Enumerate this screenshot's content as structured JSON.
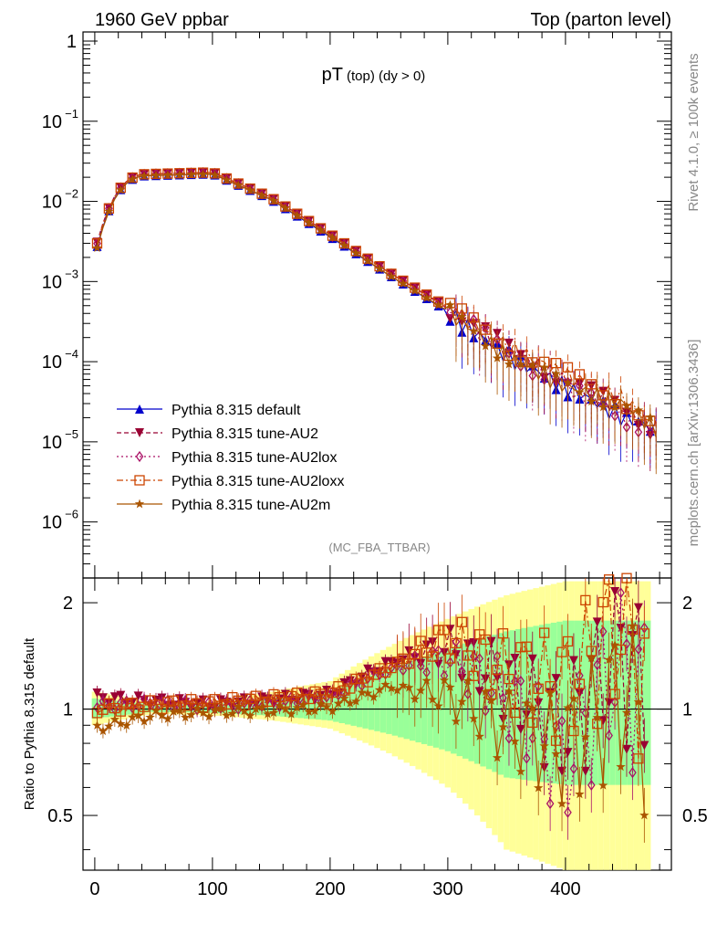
{
  "header": {
    "left": "1960 GeV ppbar",
    "right": "Top (parton level)"
  },
  "side_labels": {
    "top": "Rivet 4.1.0, ≥ 100k events",
    "bottom": "mcplots.cern.ch [arXiv:1306.3436]"
  },
  "chart_data": [
    {
      "type": "line",
      "panel": "main",
      "title": "pT",
      "title_sub": "(top)  (dy > 0)",
      "analysis": "(MC_FBA_TTBAR)",
      "yscale": "log",
      "ylim": [
        2e-07,
        1.3
      ],
      "xlim": [
        -10,
        490
      ],
      "yticks": [
        {
          "value": 1,
          "label": "1"
        },
        {
          "value": 0.1,
          "label": "10",
          "sup": "−1"
        },
        {
          "value": 0.01,
          "label": "10",
          "sup": "−2"
        },
        {
          "value": 0.001,
          "label": "10",
          "sup": "−3"
        },
        {
          "value": 0.0001,
          "label": "10",
          "sup": "−4"
        },
        {
          "value": 1e-05,
          "label": "10",
          "sup": "−5"
        },
        {
          "value": 1e-06,
          "label": "10",
          "sup": "−6"
        }
      ],
      "x": [
        0,
        50,
        100,
        150,
        200,
        250,
        300,
        350,
        400,
        450,
        475
      ],
      "series": [
        {
          "name": "Pythia 8.315 default",
          "color": "#0000cc",
          "marker": "triangle-up",
          "values": [
            0.0021,
            0.021,
            0.022,
            0.0105,
            0.0036,
            0.0012,
            0.00042,
            0.00012,
            5e-05,
            2e-05,
            1.5e-05
          ]
        },
        {
          "name": "Pythia 8.315 tune-AU2",
          "color": "#990033",
          "marker": "triangle-down",
          "values": [
            0.0024,
            0.022,
            0.023,
            0.0112,
            0.0039,
            0.0013,
            0.00047,
            0.00015,
            6e-05,
            2.5e-05,
            1.5e-05
          ]
        },
        {
          "name": "Pythia 8.315 tune-AU2lox",
          "color": "#aa1166",
          "marker": "diamond",
          "values": [
            0.0023,
            0.022,
            0.023,
            0.011,
            0.0038,
            0.0013,
            0.00046,
            0.00014,
            5e-05,
            2e-05,
            1.5e-05
          ]
        },
        {
          "name": "Pythia 8.315 tune-AU2loxx",
          "color": "#cc4400",
          "marker": "square",
          "values": [
            0.0023,
            0.022,
            0.023,
            0.0111,
            0.0039,
            0.0013,
            0.00048,
            0.00016,
            7e-05,
            3.5e-05,
            1.5e-05
          ]
        },
        {
          "name": "Pythia 8.315 tune-AU2m",
          "color": "#aa5500",
          "marker": "star",
          "values": [
            0.002,
            0.021,
            0.022,
            0.0106,
            0.0037,
            0.0012,
            0.00043,
            0.00012,
            5e-05,
            3e-05,
            1.5e-05
          ]
        }
      ]
    },
    {
      "type": "line",
      "panel": "ratio",
      "ylabel": "Ratio to Pythia 8.315 default",
      "ylim": [
        0.35,
        2.35
      ],
      "xlim": [
        -10,
        490
      ],
      "yticks": [
        0.5,
        1,
        2
      ],
      "xticks": [
        0,
        100,
        200,
        300,
        400
      ],
      "x": [
        0,
        50,
        100,
        150,
        200,
        250,
        300,
        350,
        400,
        450,
        475
      ],
      "band_upper": [
        1.12,
        1.05,
        1.05,
        1.12,
        1.2,
        1.5,
        1.8,
        2.1,
        2.3,
        2.3,
        2.3
      ],
      "band_lower": [
        0.9,
        0.97,
        0.96,
        0.93,
        0.88,
        0.75,
        0.6,
        0.4,
        0.35,
        0.35,
        0.35
      ],
      "series": [
        {
          "name": "Pythia 8.315 tune-AU2",
          "values": [
            1.08,
            1.05,
            1.03,
            1.06,
            1.1,
            1.35,
            1.5,
            1.2,
            0.9,
            1.6,
            1.0
          ]
        },
        {
          "name": "Pythia 8.315 tune-AU2lox",
          "values": [
            1.02,
            1.04,
            1.02,
            1.04,
            1.08,
            1.3,
            1.4,
            1.1,
            0.7,
            1.5,
            1.0
          ]
        },
        {
          "name": "Pythia 8.315 tune-AU2loxx",
          "values": [
            1.0,
            1.03,
            1.04,
            1.07,
            1.1,
            1.3,
            1.6,
            1.3,
            1.2,
            1.9,
            1.08
          ]
        },
        {
          "name": "Pythia 8.315 tune-AU2m",
          "values": [
            0.88,
            0.96,
            0.98,
            0.99,
            1.01,
            1.15,
            1.1,
            0.9,
            0.8,
            1.2,
            0.97
          ]
        }
      ]
    }
  ]
}
